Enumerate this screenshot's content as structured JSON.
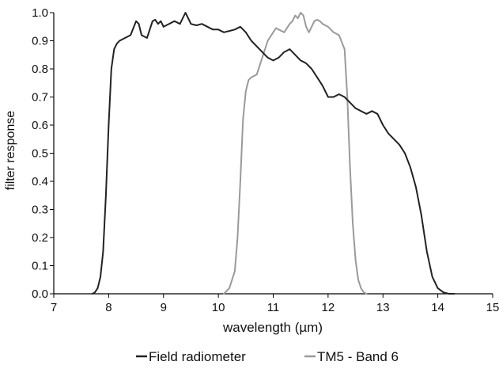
{
  "colors": {
    "axis": "#000000",
    "field_radiometer": "#222222",
    "tm5_band6": "#9a9a9a"
  },
  "chart_data": {
    "type": "line",
    "xlabel": "wavelength (µm)",
    "ylabel": "filter response",
    "xlim": [
      7,
      15
    ],
    "ylim": [
      0,
      1
    ],
    "x_ticks": [
      "7",
      "8",
      "9",
      "10",
      "11",
      "12",
      "13",
      "14",
      "15"
    ],
    "y_ticks": [
      "0.0",
      "0.1",
      "0.2",
      "0.3",
      "0.4",
      "0.5",
      "0.6",
      "0.7",
      "0.8",
      "0.9",
      "1.0"
    ],
    "grid": false,
    "legend_placement": "bottom",
    "series": [
      {
        "name": "Field radiometer",
        "color": "#222222",
        "x": [
          7.7,
          7.75,
          7.8,
          7.85,
          7.9,
          7.95,
          8.0,
          8.05,
          8.1,
          8.15,
          8.2,
          8.3,
          8.4,
          8.5,
          8.55,
          8.6,
          8.7,
          8.8,
          8.85,
          8.9,
          8.95,
          9.0,
          9.1,
          9.2,
          9.3,
          9.4,
          9.45,
          9.5,
          9.6,
          9.7,
          9.8,
          9.9,
          10.0,
          10.1,
          10.2,
          10.3,
          10.4,
          10.5,
          10.6,
          10.7,
          10.8,
          10.9,
          11.0,
          11.1,
          11.2,
          11.3,
          11.4,
          11.5,
          11.6,
          11.7,
          11.8,
          11.9,
          12.0,
          12.1,
          12.2,
          12.3,
          12.4,
          12.5,
          12.6,
          12.7,
          12.8,
          12.9,
          13.0,
          13.1,
          13.2,
          13.3,
          13.4,
          13.5,
          13.6,
          13.7,
          13.8,
          13.9,
          14.0,
          14.1,
          14.2,
          14.3
        ],
        "values": [
          0.0,
          0.005,
          0.02,
          0.06,
          0.15,
          0.35,
          0.6,
          0.8,
          0.87,
          0.89,
          0.9,
          0.91,
          0.92,
          0.97,
          0.96,
          0.92,
          0.91,
          0.97,
          0.975,
          0.96,
          0.97,
          0.95,
          0.96,
          0.97,
          0.96,
          1.0,
          0.98,
          0.96,
          0.955,
          0.96,
          0.95,
          0.94,
          0.94,
          0.93,
          0.935,
          0.94,
          0.95,
          0.93,
          0.9,
          0.88,
          0.86,
          0.84,
          0.83,
          0.84,
          0.86,
          0.87,
          0.85,
          0.83,
          0.82,
          0.8,
          0.77,
          0.74,
          0.7,
          0.7,
          0.71,
          0.7,
          0.68,
          0.66,
          0.65,
          0.64,
          0.65,
          0.64,
          0.6,
          0.57,
          0.55,
          0.53,
          0.5,
          0.45,
          0.38,
          0.28,
          0.15,
          0.06,
          0.02,
          0.005,
          0.0,
          0.0
        ]
      },
      {
        "name": "TM5 - Band 6",
        "color": "#9a9a9a",
        "x": [
          10.1,
          10.2,
          10.3,
          10.35,
          10.4,
          10.45,
          10.5,
          10.55,
          10.6,
          10.7,
          10.8,
          10.9,
          11.0,
          11.05,
          11.1,
          11.2,
          11.3,
          11.35,
          11.4,
          11.45,
          11.5,
          11.55,
          11.6,
          11.65,
          11.7,
          11.75,
          11.8,
          11.85,
          11.9,
          12.0,
          12.1,
          12.2,
          12.3,
          12.35,
          12.4,
          12.45,
          12.5,
          12.55,
          12.6,
          12.65,
          12.7
        ],
        "values": [
          0.0,
          0.02,
          0.08,
          0.2,
          0.4,
          0.62,
          0.72,
          0.76,
          0.77,
          0.78,
          0.84,
          0.9,
          0.93,
          0.945,
          0.94,
          0.93,
          0.96,
          0.97,
          0.99,
          0.98,
          1.0,
          0.99,
          0.95,
          0.93,
          0.95,
          0.97,
          0.975,
          0.97,
          0.96,
          0.95,
          0.93,
          0.92,
          0.87,
          0.7,
          0.45,
          0.25,
          0.12,
          0.05,
          0.02,
          0.005,
          0.0
        ]
      }
    ]
  }
}
